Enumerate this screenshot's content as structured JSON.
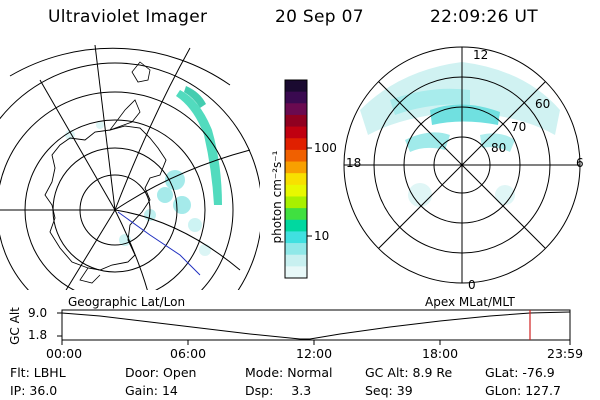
{
  "header": {
    "instrument": "Ultraviolet Imager",
    "date": "20 Sep 07",
    "time": "22:09:26 UT"
  },
  "colorbar": {
    "unit_label": "photon cm⁻²s⁻¹",
    "ticks": [
      "100",
      "10"
    ],
    "colors": [
      "#1a0a30",
      "#3a0a50",
      "#6a0a50",
      "#900020",
      "#c00010",
      "#e02000",
      "#f06000",
      "#f8a000",
      "#f8e000",
      "#e8f800",
      "#a8f000",
      "#40e040",
      "#00d8a0",
      "#40e0e0",
      "#90e8e8",
      "#c8f0f0",
      "#e8f8f8"
    ]
  },
  "left_map": {
    "label": "Geographic Lat/Lon"
  },
  "right_map": {
    "label": "Apex MLat/MLT",
    "mlt_labels": {
      "top": "12",
      "left": "18",
      "right": "6",
      "bottom": "0"
    },
    "mlat_labels": [
      "60",
      "70",
      "80"
    ]
  },
  "gc_alt_panel": {
    "axis_title": "GC Alt",
    "yticks": [
      "9.0",
      "1.8"
    ],
    "xticks": [
      "00:00",
      "06:00",
      "12:00",
      "18:00",
      "23:59"
    ],
    "marker_color": "#d02020"
  },
  "status": {
    "row1": [
      {
        "label": "Flt:",
        "value": "LBHL"
      },
      {
        "label": "Door:",
        "value": "Open"
      },
      {
        "label": "Mode:",
        "value": "Normal"
      },
      {
        "label": "GC Alt:",
        "value": "8.9 Re"
      },
      {
        "label": "GLat:",
        "value": "-76.9"
      }
    ],
    "row2": [
      {
        "label": "IP:",
        "value": "36.0"
      },
      {
        "label": "Gain:",
        "value": "14"
      },
      {
        "label": "Dsp:",
        "value": "3.3"
      },
      {
        "label": "Seq:",
        "value": "39"
      },
      {
        "label": "GLon:",
        "value": "127.7"
      }
    ]
  }
}
